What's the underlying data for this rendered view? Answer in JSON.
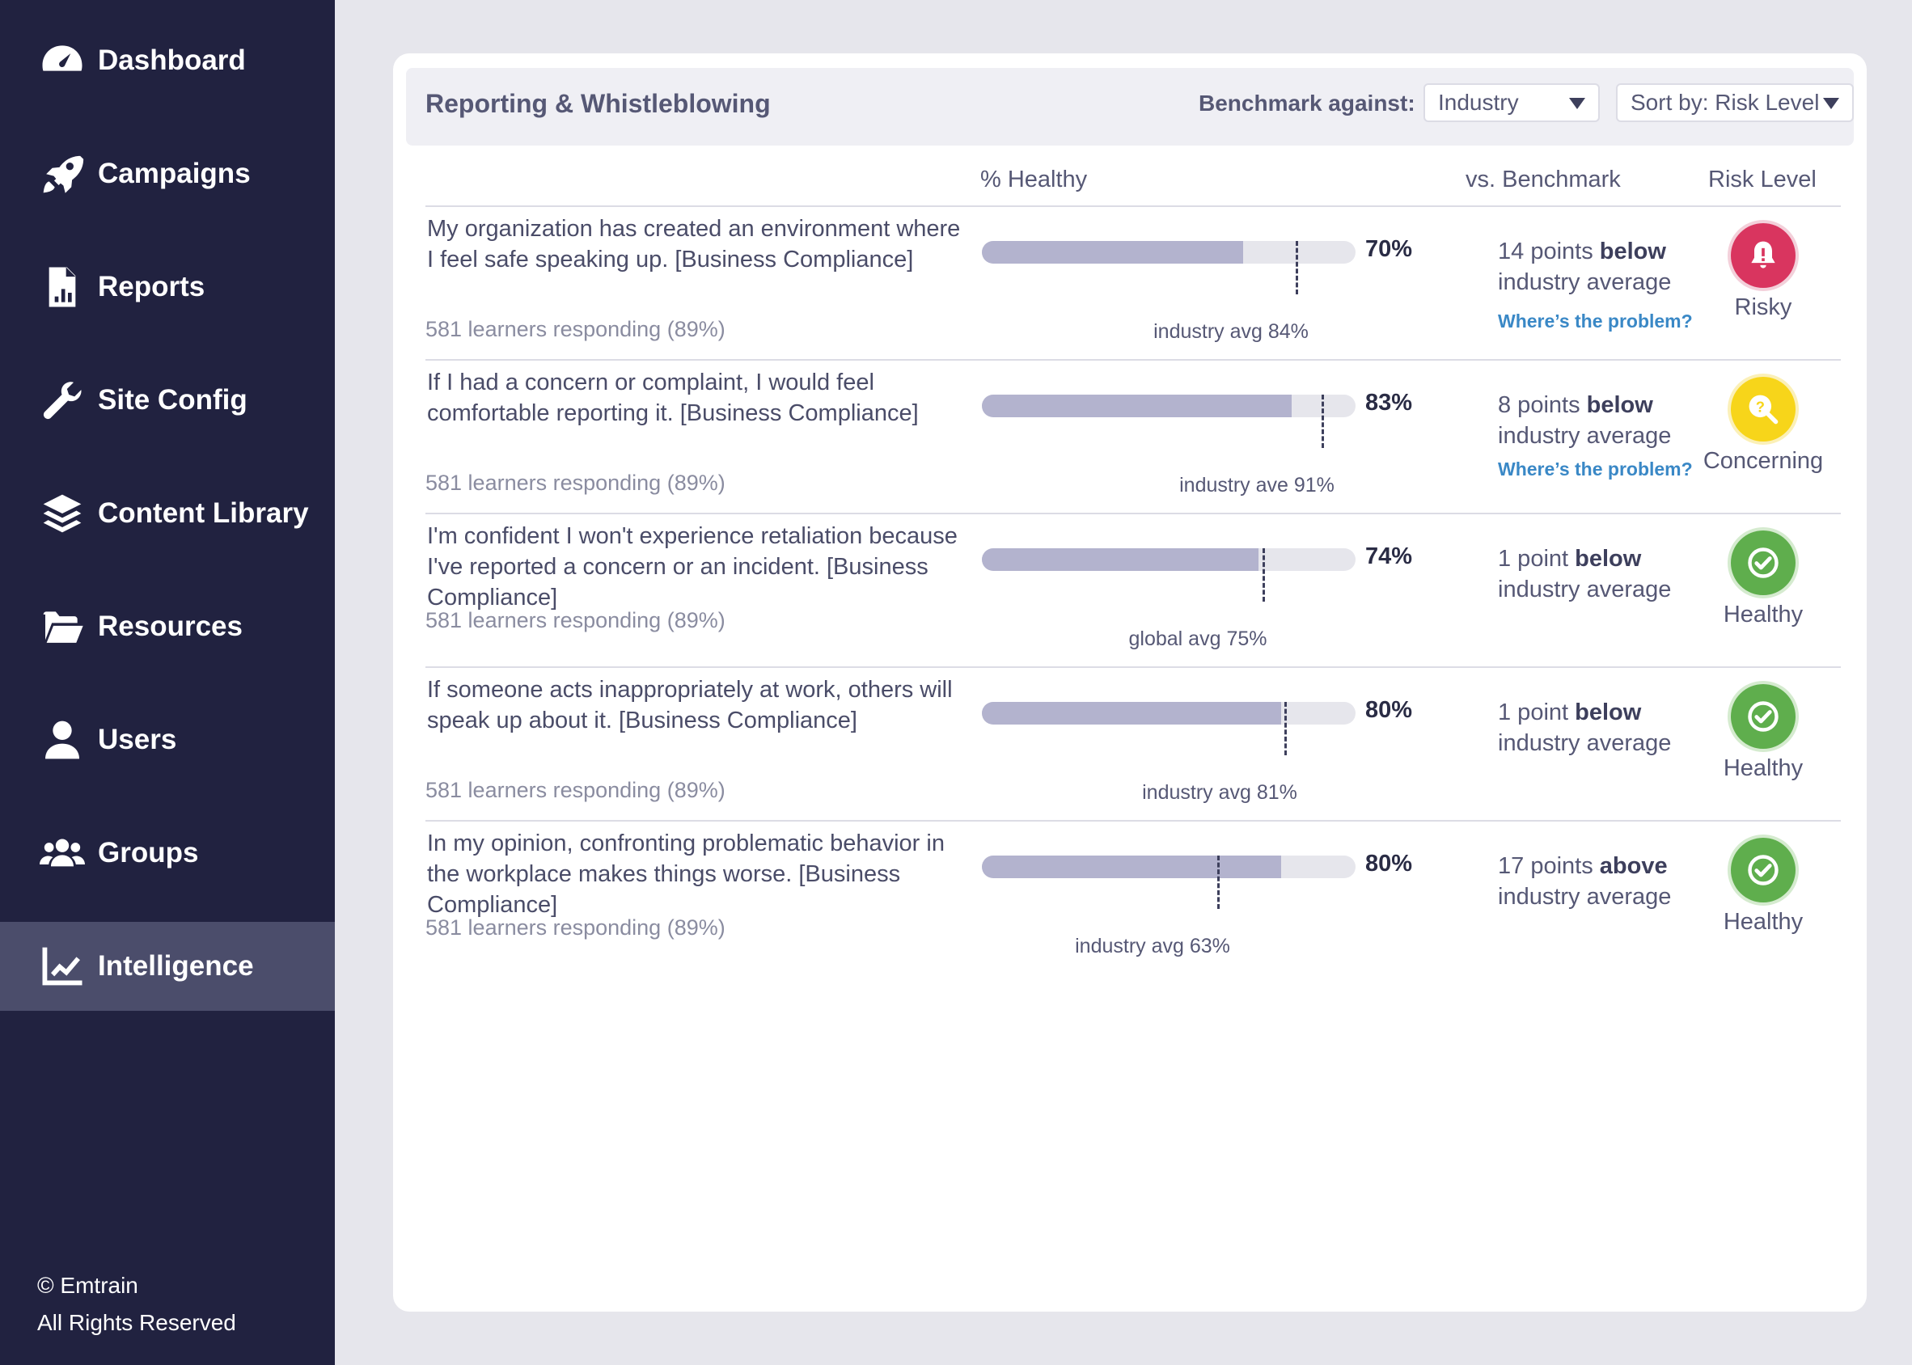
{
  "sidebar": {
    "items": [
      {
        "label": "Dashboard",
        "icon": "dashboard-icon"
      },
      {
        "label": "Campaigns",
        "icon": "rocket-icon"
      },
      {
        "label": "Reports",
        "icon": "report-icon"
      },
      {
        "label": "Site Config",
        "icon": "wrench-icon"
      },
      {
        "label": "Content Library",
        "icon": "layers-icon"
      },
      {
        "label": "Resources",
        "icon": "folder-icon"
      },
      {
        "label": "Users",
        "icon": "user-icon"
      },
      {
        "label": "Groups",
        "icon": "group-icon"
      },
      {
        "label": "Intelligence",
        "icon": "chart-line-icon",
        "active": true
      }
    ],
    "footer_line1": "© Emtrain",
    "footer_line2": "All Rights Reserved"
  },
  "header": {
    "title": "Reporting & Whistleblowing",
    "benchmark_label": "Benchmark against:",
    "benchmark_value": "Industry",
    "sort_value": "Sort by: Risk Level"
  },
  "columns": {
    "healthy": "% Healthy",
    "benchmark": "vs. Benchmark",
    "risk": "Risk Level"
  },
  "rows": [
    {
      "question": "My organization has created an environment where I feel safe speaking up. [Business Compliance]",
      "responding": "581 learners responding (89%)",
      "healthy_pct": 70,
      "healthy_label": "70%",
      "avg_pct": 84,
      "avg_label": "industry avg 84%",
      "bench_points": "14 points",
      "bench_dir": "below",
      "bench_rest": "industry average",
      "problem_link": "Where’s the problem?",
      "risk": "Risky"
    },
    {
      "question": "If I had a concern or complaint, I would feel comfortable reporting it. [Business Compliance]",
      "responding": "581 learners responding (89%)",
      "healthy_pct": 83,
      "healthy_label": "83%",
      "avg_pct": 91,
      "avg_label": "industry ave 91%",
      "bench_points": "8 points",
      "bench_dir": "below",
      "bench_rest": "industry average",
      "problem_link": "Where’s the problem?",
      "risk": "Concerning"
    },
    {
      "question": "I'm confident I won't experience retaliation because I've reported a concern or an incident. [Business Compliance]",
      "responding": "581 learners responding (89%)",
      "healthy_pct": 74,
      "healthy_label": "74%",
      "avg_pct": 75,
      "avg_label": "global avg 75%",
      "bench_points": "1 point",
      "bench_dir": "below",
      "bench_rest": "industry average",
      "problem_link": "",
      "risk": "Healthy"
    },
    {
      "question": "If someone acts inappropriately at work, others will speak up about it. [Business Compliance]",
      "responding": "581 learners responding (89%)",
      "healthy_pct": 80,
      "healthy_label": "80%",
      "avg_pct": 81,
      "avg_label": "industry avg 81%",
      "bench_points": "1 point",
      "bench_dir": "below",
      "bench_rest": "industry average",
      "problem_link": "",
      "risk": "Healthy"
    },
    {
      "question": "In my opinion, confronting problematic behavior in the workplace makes things worse. [Business Compliance]",
      "responding": "581 learners responding (89%)",
      "healthy_pct": 80,
      "healthy_label": "80%",
      "avg_pct": 63,
      "avg_label": "industry avg 63%",
      "bench_points": "17 points",
      "bench_dir": "above",
      "bench_rest": "industry average",
      "problem_link": "",
      "risk": "Healthy"
    }
  ],
  "colors": {
    "sidebar_bg": "#212240",
    "sidebar_active": "#4b4d6b",
    "risky": "#d9355f",
    "concerning": "#f7d51a",
    "healthy": "#5fae4d",
    "link": "#3a88c6",
    "bar_fill": "#b3b3ce"
  }
}
